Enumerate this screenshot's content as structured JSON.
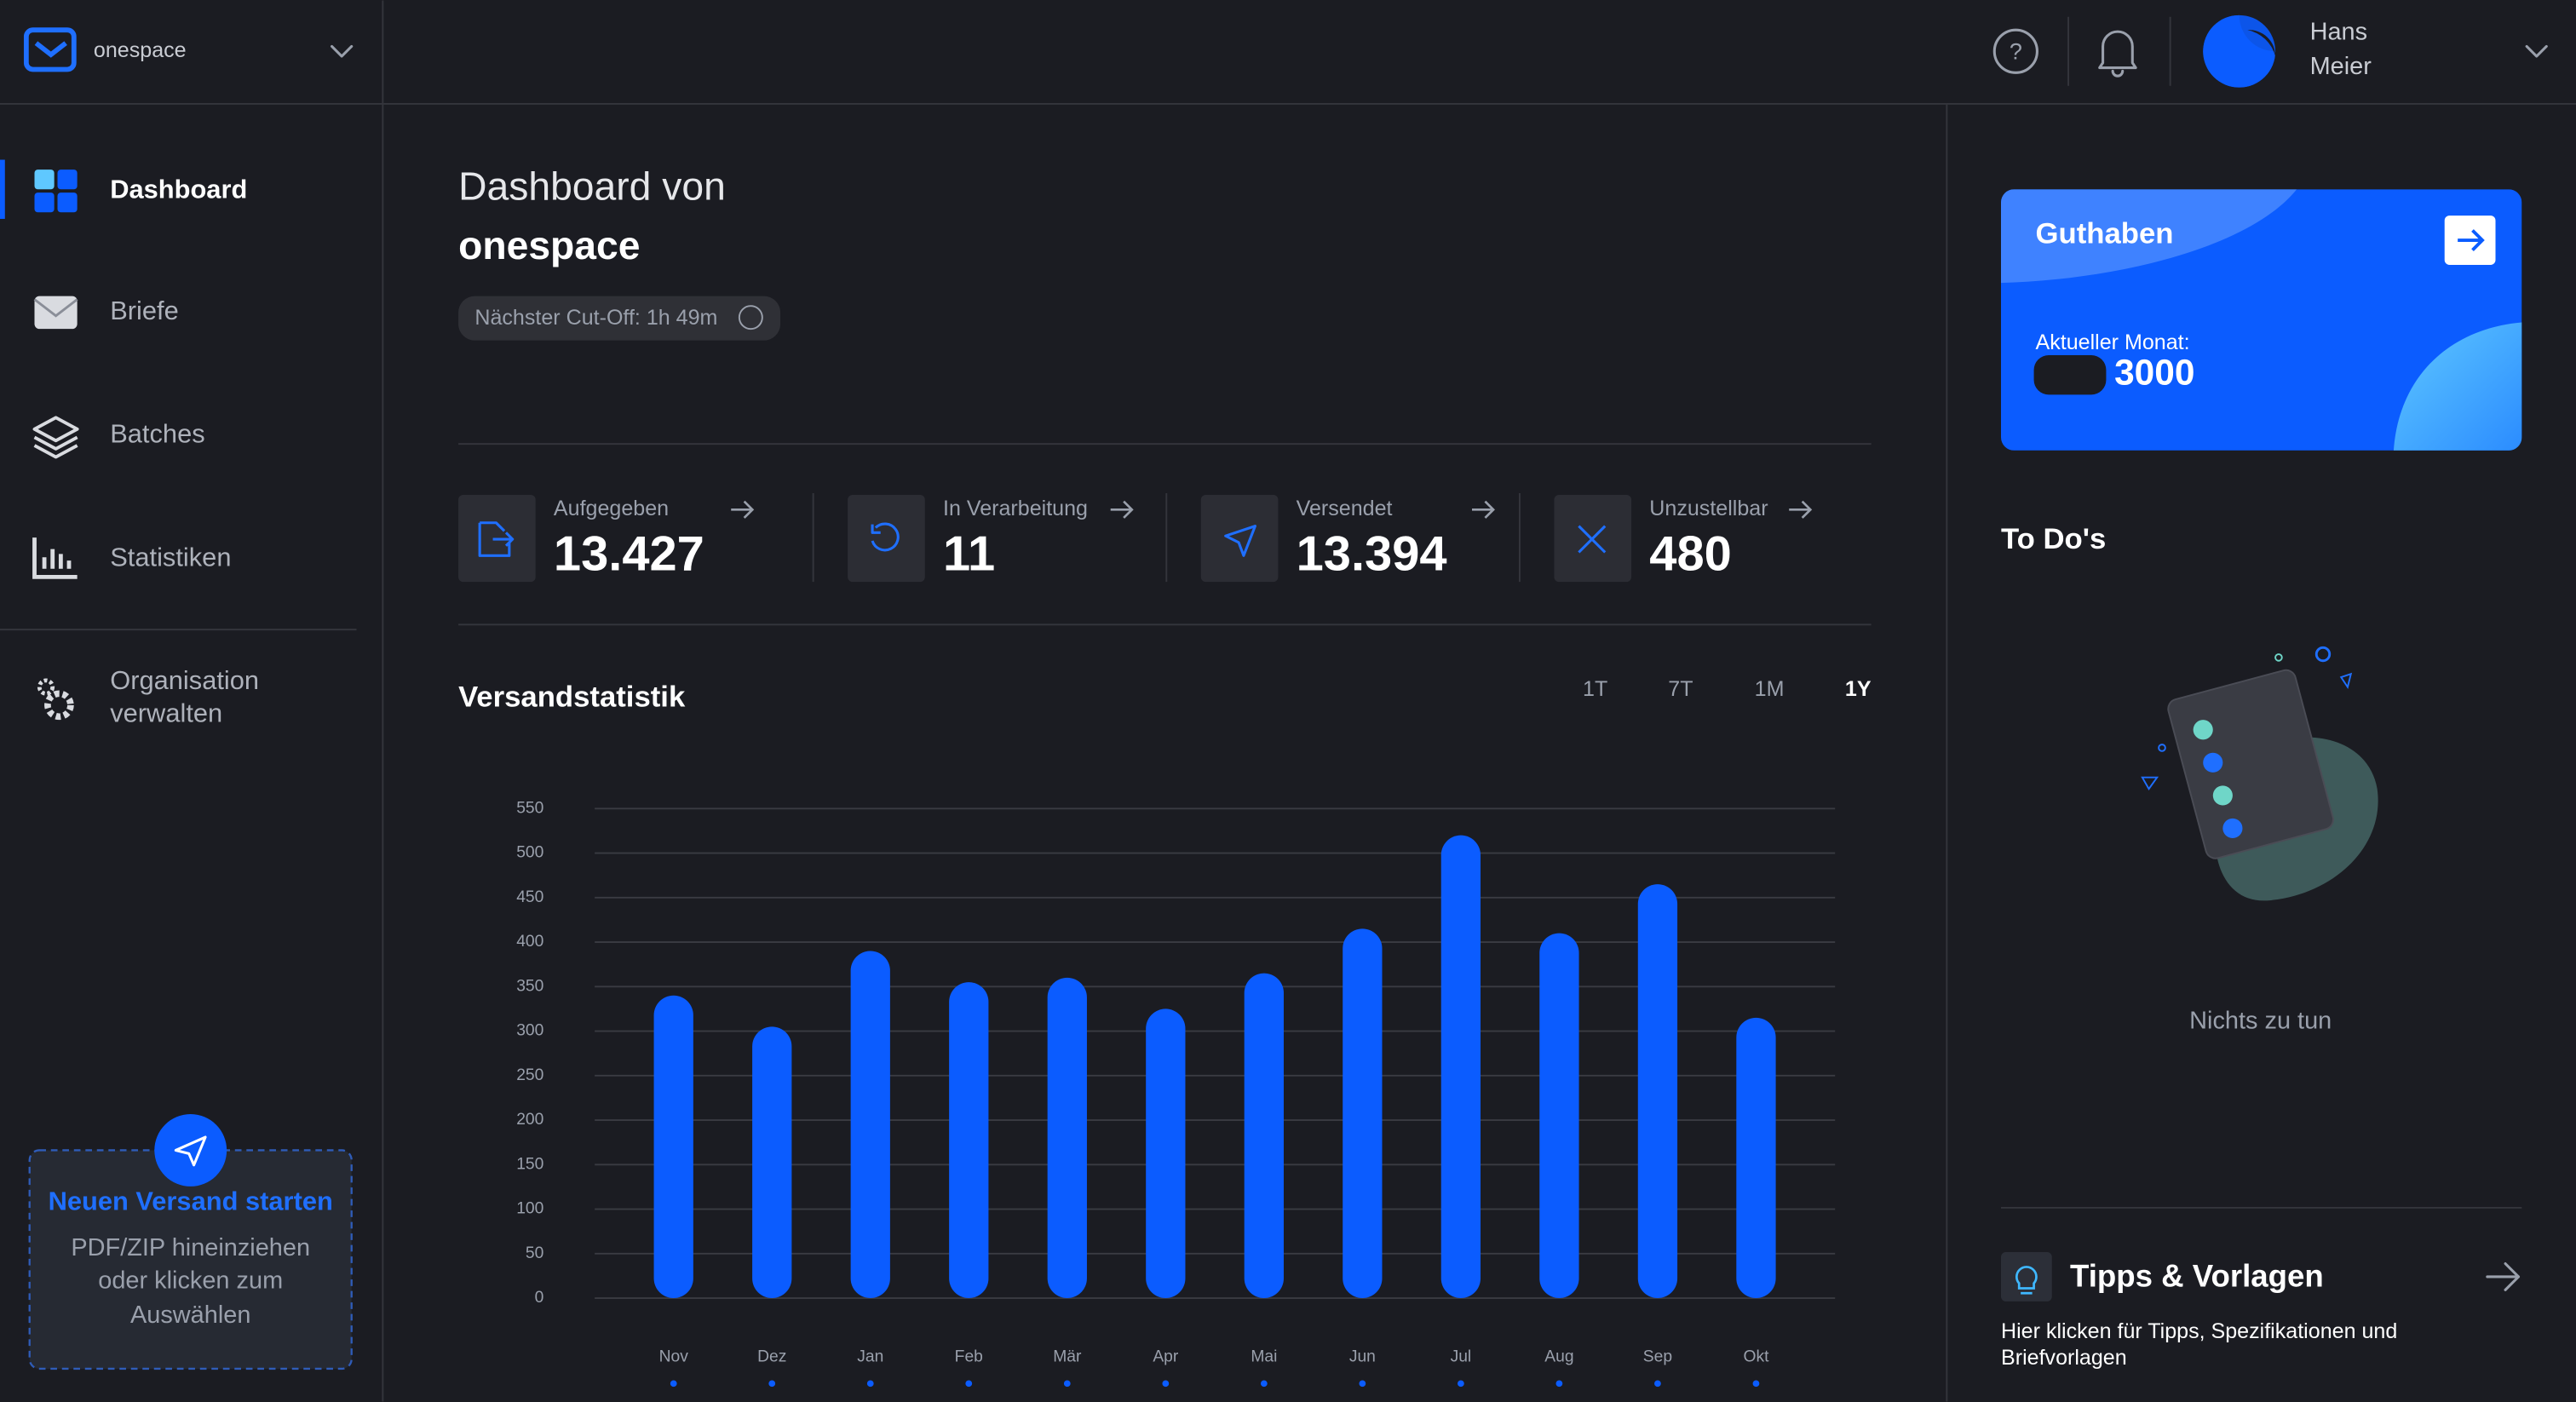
{
  "header": {
    "org": "onespace",
    "user": [
      "Hans",
      "Meier"
    ]
  },
  "sidebar": {
    "nav": [
      "Dashboard",
      "Briefe",
      "Batches",
      "Statistiken"
    ],
    "settings": [
      "Organisation",
      "verwalten"
    ],
    "upload": {
      "title": "Neuen Versand starten",
      "lines": [
        "PDF/ZIP hineinziehen",
        "oder klicken zum",
        "Auswählen"
      ]
    }
  },
  "main": {
    "title": "Dashboard von",
    "org": "onespace",
    "cutoff": "Nächster Cut-Off: 1h 49m",
    "stats": [
      {
        "label": "Aufgegeben",
        "value": "13.427"
      },
      {
        "label": "In Verarbeitung",
        "value": "11"
      },
      {
        "label": "Versendet",
        "value": "13.394"
      },
      {
        "label": "Unzustellbar",
        "value": "480"
      }
    ],
    "ranges": [
      "1T",
      "7T",
      "1M",
      "1Y"
    ]
  },
  "chart_data": {
    "type": "bar",
    "title": "Versandstatistik",
    "categories": [
      "Nov",
      "Dez",
      "Jan",
      "Feb",
      "Mär",
      "Apr",
      "Mai",
      "Jun",
      "Jul",
      "Aug",
      "Sep",
      "Okt"
    ],
    "values": [
      340,
      305,
      390,
      355,
      360,
      325,
      365,
      415,
      520,
      410,
      465,
      315
    ],
    "color": "#0b5cff",
    "ylim": [
      0,
      550
    ],
    "yticks": [
      0,
      50,
      100,
      150,
      200,
      250,
      300,
      350,
      400,
      450,
      500,
      550
    ],
    "grid": true
  },
  "right": {
    "credit_title": "Guthaben",
    "credit_label": "Aktueller Monat:",
    "credit_value": "3000",
    "todo_title": "To Do's",
    "todo_empty": "Nichts zu tun",
    "tips_title": "Tipps & Vorlagen",
    "tips_text": [
      "Hier klicken für Tipps, Spezifikationen und",
      "Briefvorlagen"
    ]
  }
}
